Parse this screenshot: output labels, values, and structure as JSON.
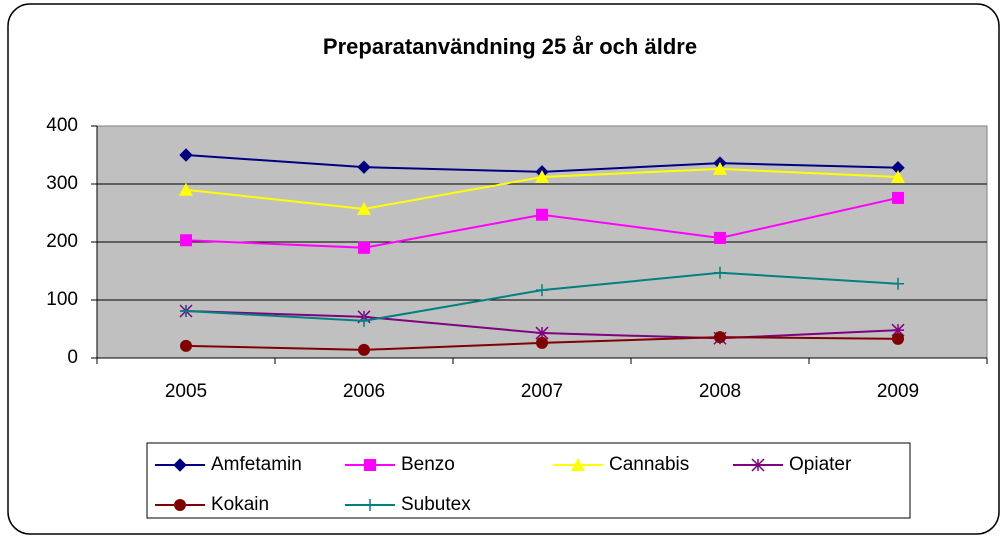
{
  "chart_data": {
    "type": "line",
    "title": "Preparatanvändning 25 år och äldre",
    "categories": [
      "2005",
      "2006",
      "2007",
      "2008",
      "2009"
    ],
    "series": [
      {
        "name": "Amfetamin",
        "color": "#000080",
        "marker": "diamond",
        "values": [
          350,
          329,
          321,
          336,
          328
        ]
      },
      {
        "name": "Benzo",
        "color": "#FF00FF",
        "marker": "square",
        "values": [
          203,
          190,
          247,
          207,
          276
        ]
      },
      {
        "name": "Cannabis",
        "color": "#FFFF00",
        "marker": "triangle",
        "values": [
          290,
          257,
          312,
          326,
          312
        ]
      },
      {
        "name": "Opiater",
        "color": "#800080",
        "marker": "star",
        "values": [
          81,
          71,
          43,
          34,
          48
        ]
      },
      {
        "name": "Kokain",
        "color": "#800000",
        "marker": "circle",
        "values": [
          21,
          14,
          26,
          36,
          33
        ]
      },
      {
        "name": "Subutex",
        "color": "#008080",
        "marker": "plus",
        "values": [
          81,
          64,
          117,
          147,
          128
        ]
      }
    ],
    "ylim": [
      0,
      400
    ],
    "yticks": [
      0,
      100,
      200,
      300,
      400
    ],
    "grid": true,
    "legend": "bottom"
  }
}
